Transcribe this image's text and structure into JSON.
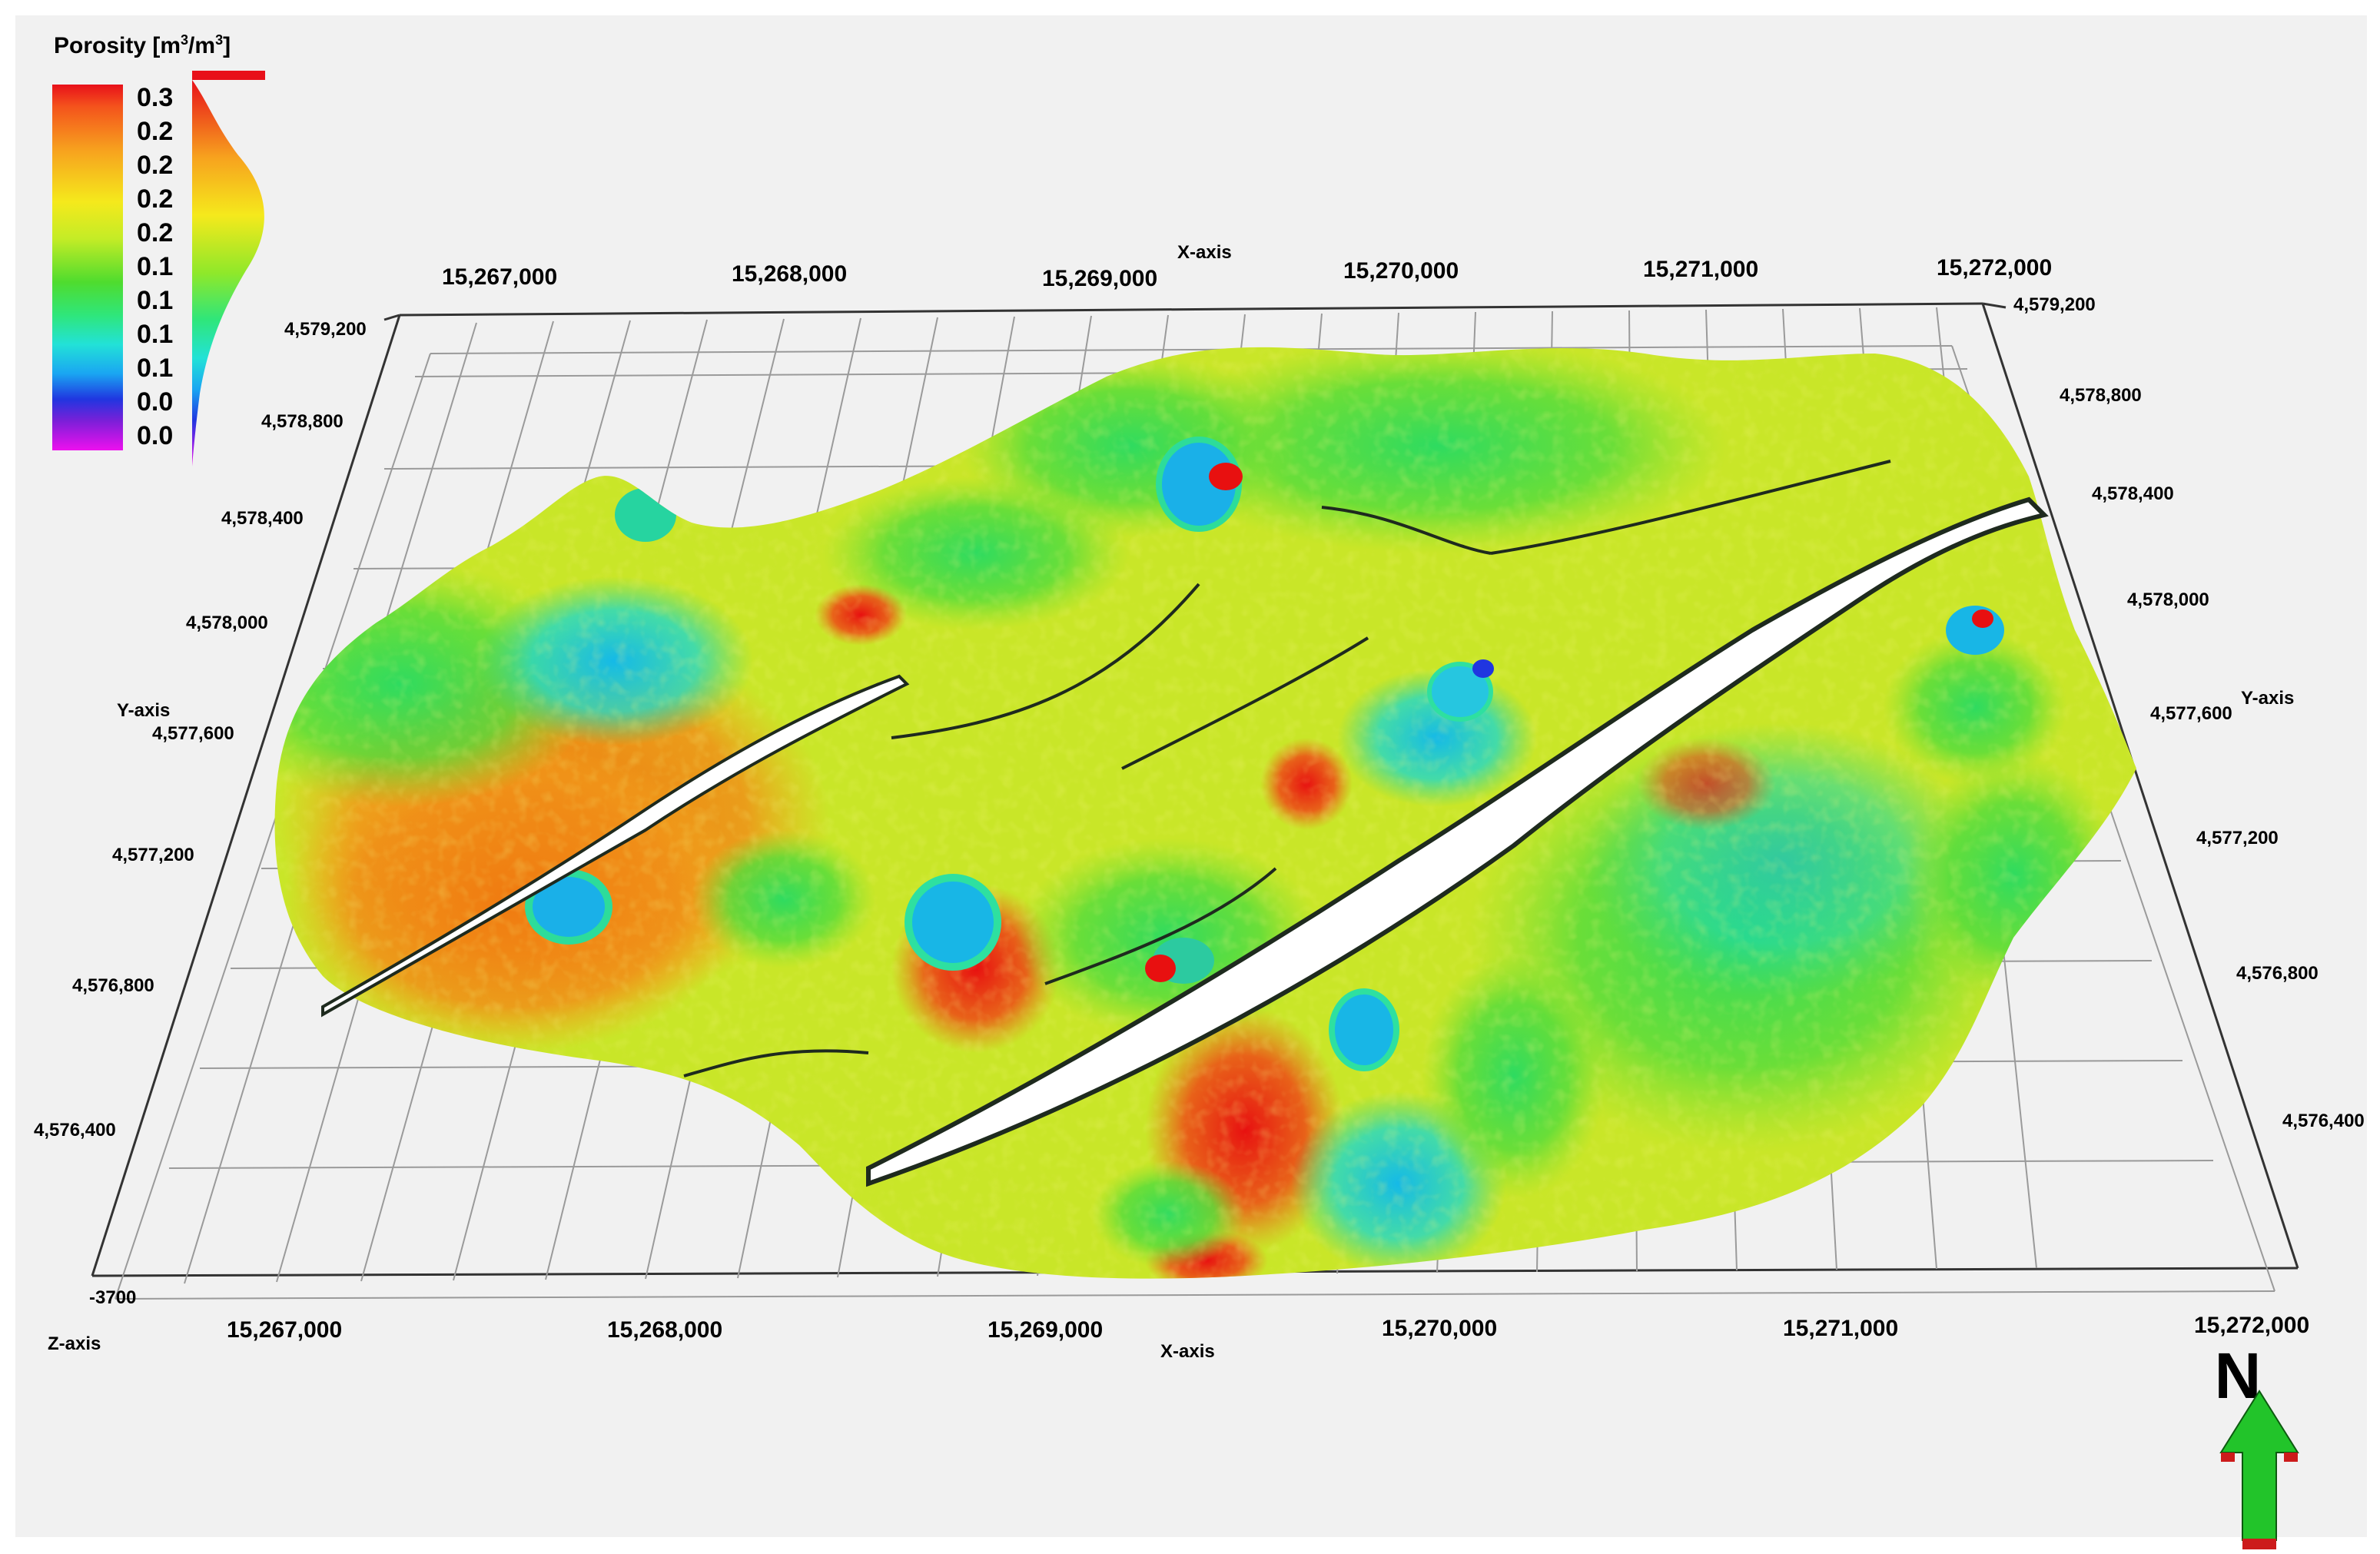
{
  "legend": {
    "title": "Porosity [m",
    "title_sup1": "3",
    "title_mid": "/m",
    "title_sup2": "3",
    "title_end": "]",
    "ticks": [
      "0.3",
      "0.2",
      "0.2",
      "0.2",
      "0.2",
      "0.1",
      "0.1",
      "0.1",
      "0.1",
      "0.0",
      "0.0"
    ]
  },
  "axes": {
    "x_axis_label_top": "X-axis",
    "x_axis_label_bottom": "X-axis",
    "y_axis_label_left": "Y-axis",
    "y_axis_label_right": "Y-axis",
    "z_axis_label": "Z-axis",
    "z_value": "-3700",
    "x_ticks_top": [
      "15,267,000",
      "15,268,000",
      "15,269,000",
      "15,270,000",
      "15,271,000",
      "15,272,000"
    ],
    "x_ticks_bottom": [
      "15,267,000",
      "15,268,000",
      "15,269,000",
      "15,270,000",
      "15,271,000",
      "15,272,000"
    ],
    "y_ticks_left": [
      "4,579,200",
      "4,578,800",
      "4,578,400",
      "4,578,000",
      "4,577,600",
      "4,577,200",
      "4,576,800",
      "4,576,400"
    ],
    "y_ticks_right": [
      "4,579,200",
      "4,578,800",
      "4,578,400",
      "4,578,000",
      "4,577,600",
      "4,577,200",
      "4,576,800",
      "4,576,400"
    ]
  },
  "north_arrow": {
    "label": "N",
    "color": "#22c42a"
  },
  "colors": {
    "background": "#f1f1f1",
    "grid": "#9a9a9a",
    "frame": "#222222"
  }
}
